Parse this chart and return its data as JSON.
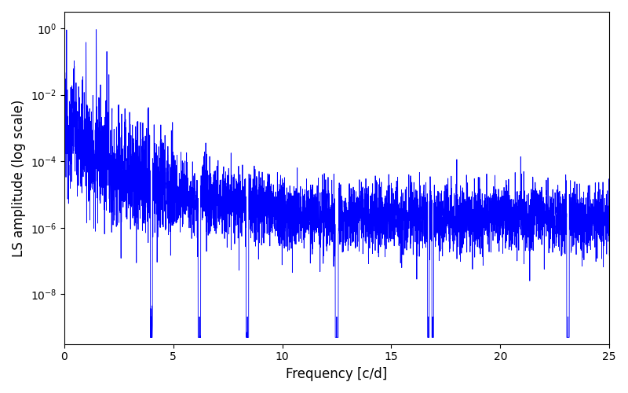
{
  "title": "",
  "xlabel": "Frequency [c/d]",
  "ylabel": "LS amplitude (log scale)",
  "xlim": [
    0,
    25
  ],
  "ylim_log": [
    -9.5,
    0.5
  ],
  "line_color": "#0000ff",
  "line_width": 0.6,
  "background_color": "#ffffff",
  "figsize": [
    8.0,
    5.0
  ],
  "dpi": 100,
  "seed": 12345,
  "n_points": 5000,
  "freq_max": 25.0
}
